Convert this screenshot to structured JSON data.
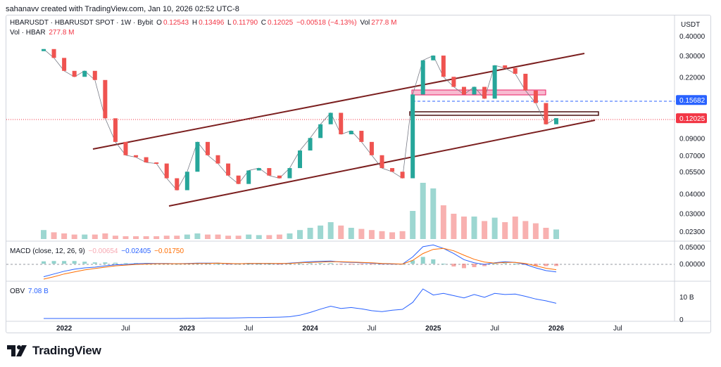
{
  "credit": "sahanavv created with TradingView.com, Jan 10, 2026 02:52 UTC-8",
  "brand": "TradingView",
  "price_pane": {
    "symbol": "HBARUSDT · HBARUSDT SPOT · 1W · Bybit",
    "o_label": "O",
    "o_value": "0.12543",
    "h_label": "H",
    "h_value": "0.13496",
    "l_label": "L",
    "l_value": "0.11790",
    "c_label": "C",
    "c_value": "0.12025",
    "change": "−0.00518 (−4.13%)",
    "vol_label": "Vol",
    "vol_value": "277.8 M",
    "vol_legend_label": "Vol · HBAR",
    "vol_legend_value": "277.8 M",
    "currency": "USDT",
    "axis_ticks": [
      "0.40000",
      "0.30000",
      "0.22000",
      "0.15682",
      "0.12025",
      "0.09000",
      "0.07000",
      "0.05500",
      "0.04000",
      "0.03000",
      "0.02300"
    ],
    "hline_level_label": "0.15682",
    "last_price_label": "0.12025"
  },
  "macd_pane": {
    "label": "MACD (close, 12, 26, 9)",
    "hist_value": "−0.00654",
    "macd_value": "−0.02405",
    "signal_value": "−0.01750",
    "axis_ticks": [
      "0.05000",
      "0.00000"
    ]
  },
  "obv_pane": {
    "label": "OBV",
    "value": "7.08 B",
    "axis_ticks": [
      "10 B",
      "0"
    ]
  },
  "time_axis": [
    "2022",
    "Jul",
    "2023",
    "Jul",
    "2024",
    "Jul",
    "2025",
    "Jul",
    "2026",
    "Jul"
  ],
  "colors": {
    "up": "#26a69a",
    "down": "#ef5350",
    "channel": "#7b1f1f",
    "level": "#2962ff",
    "last": "#f23645",
    "macd": "#2962ff",
    "signal": "#ff6d00",
    "obv": "#2962ff"
  },
  "chart_data": [
    {
      "type": "line",
      "title": "HBARUSDT · HBARUSDT SPOT · 1W · Bybit",
      "scale": "log",
      "ylim": [
        0.021,
        0.43
      ],
      "x": [
        "2021-11",
        "2021-12",
        "2022-01",
        "2022-02",
        "2022-03",
        "2022-04",
        "2022-05",
        "2022-06",
        "2022-07",
        "2022-08",
        "2022-09",
        "2022-10",
        "2022-11",
        "2022-12",
        "2023-01",
        "2023-02",
        "2023-03",
        "2023-04",
        "2023-05",
        "2023-06",
        "2023-07",
        "2023-08",
        "2023-09",
        "2023-10",
        "2023-11",
        "2023-12",
        "2024-01",
        "2024-02",
        "2024-03",
        "2024-04",
        "2024-05",
        "2024-06",
        "2024-07",
        "2024-08",
        "2024-09",
        "2024-10",
        "2024-11",
        "2024-12",
        "2025-01",
        "2025-02",
        "2025-03",
        "2025-04",
        "2025-05",
        "2025-06",
        "2025-07",
        "2025-08",
        "2025-09",
        "2025-10",
        "2025-11",
        "2025-12",
        "2026-01"
      ],
      "series": [
        {
          "values": [
            0.33,
            0.29,
            0.24,
            0.22,
            0.24,
            0.21,
            0.12,
            0.085,
            0.07,
            0.068,
            0.063,
            0.062,
            0.05,
            0.042,
            0.055,
            0.085,
            0.07,
            0.062,
            0.052,
            0.046,
            0.056,
            0.058,
            0.052,
            0.05,
            0.058,
            0.075,
            0.09,
            0.11,
            0.13,
            0.095,
            0.1,
            0.085,
            0.07,
            0.058,
            0.055,
            0.05,
            0.17,
            0.28,
            0.3,
            0.22,
            0.19,
            0.17,
            0.19,
            0.16,
            0.26,
            0.25,
            0.23,
            0.18,
            0.15,
            0.11,
            0.12025
          ]
        }
      ],
      "annotations": [
        "0.15682",
        "0.12025"
      ]
    },
    {
      "type": "bar",
      "title": "Vol · HBAR",
      "series": [
        {
          "values": [
            0.16,
            0.12,
            0.1,
            0.08,
            0.08,
            0.08,
            0.1,
            0.06,
            0.05,
            0.05,
            0.05,
            0.05,
            0.06,
            0.06,
            0.08,
            0.1,
            0.08,
            0.08,
            0.06,
            0.06,
            0.08,
            0.07,
            0.07,
            0.08,
            0.1,
            0.16,
            0.2,
            0.24,
            0.3,
            0.24,
            0.2,
            0.18,
            0.16,
            0.14,
            0.12,
            0.14,
            0.5,
            1.0,
            0.9,
            0.6,
            0.45,
            0.4,
            0.4,
            0.32,
            0.38,
            0.3,
            0.4,
            0.32,
            0.28,
            0.2,
            0.17
          ]
        }
      ]
    },
    {
      "type": "line",
      "title": "MACD (close, 12, 26, 9)",
      "ylim": [
        -0.045,
        0.06
      ],
      "series": [
        {
          "name": "MACD",
          "values": [
            -0.038,
            -0.03,
            -0.022,
            -0.016,
            -0.012,
            -0.01,
            -0.006,
            -0.003,
            -0.002,
            0.0,
            0.001,
            0.001,
            0.001,
            0.0,
            0.001,
            0.002,
            0.002,
            0.002,
            0.0,
            0.0,
            0.001,
            0.001,
            0.001,
            0.0,
            0.002,
            0.004,
            0.006,
            0.007,
            0.008,
            0.005,
            0.004,
            0.003,
            0.002,
            0.0,
            -0.001,
            -0.001,
            0.02,
            0.05,
            0.055,
            0.045,
            0.03,
            0.012,
            0.003,
            -0.002,
            0.003,
            0.006,
            0.004,
            -0.002,
            -0.012,
            -0.02,
            -0.02405
          ]
        },
        {
          "name": "Signal",
          "values": [
            -0.045,
            -0.038,
            -0.03,
            -0.024,
            -0.018,
            -0.014,
            -0.01,
            -0.006,
            -0.004,
            -0.002,
            -0.001,
            0.0,
            0.0,
            0.0,
            0.0,
            0.001,
            0.001,
            0.002,
            0.001,
            0.0,
            0.001,
            0.001,
            0.001,
            0.001,
            0.001,
            0.003,
            0.004,
            0.005,
            0.006,
            0.006,
            0.005,
            0.004,
            0.003,
            0.001,
            0.0,
            -0.001,
            0.01,
            0.03,
            0.042,
            0.045,
            0.038,
            0.025,
            0.013,
            0.005,
            0.002,
            0.004,
            0.004,
            0.001,
            -0.006,
            -0.013,
            -0.0175
          ]
        }
      ]
    },
    {
      "type": "line",
      "title": "OBV",
      "ylim": [
        0,
        16
      ],
      "series": [
        {
          "values": [
            0.3,
            0.3,
            0.3,
            0.3,
            0.3,
            0.3,
            0.3,
            0.3,
            0.3,
            0.3,
            0.3,
            0.3,
            0.3,
            0.3,
            0.4,
            0.4,
            0.5,
            0.5,
            0.5,
            0.6,
            0.7,
            0.7,
            0.8,
            0.9,
            1.1,
            1.8,
            3.0,
            4.5,
            5.8,
            4.8,
            5.2,
            4.6,
            3.8,
            3.4,
            4.0,
            4.4,
            7.5,
            13.5,
            10.8,
            11.5,
            10.5,
            9.5,
            11.0,
            9.8,
            11.5,
            11.0,
            11.2,
            10.2,
            9.0,
            8.2,
            7.08
          ]
        }
      ]
    }
  ]
}
